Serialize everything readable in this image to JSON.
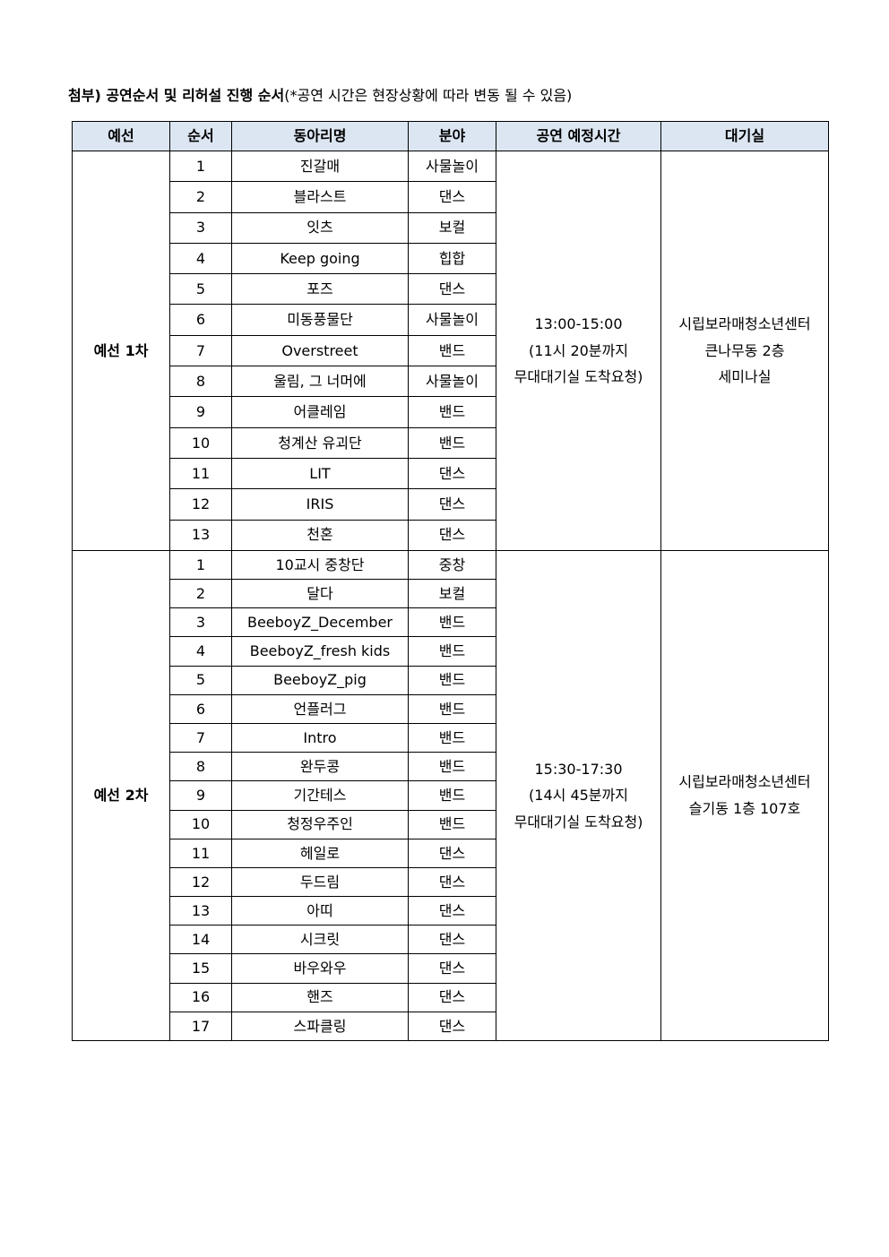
{
  "title": {
    "bold": "첨부) 공연순서 및 리허설 진행 순서",
    "note": "(*공연 시간은 현장상황에 따라 변동 될 수 있음)"
  },
  "table": {
    "headers": [
      "예선",
      "순서",
      "동아리명",
      "분야",
      "공연 예정시간",
      "대기실"
    ],
    "header_bg": "#dce6f2",
    "groups": [
      {
        "round": "예선 1차",
        "time": [
          "13:00-15:00",
          "(11시 20분까지",
          "무대대기실 도착요청)"
        ],
        "room": [
          "시립보라매청소년센터",
          "큰나무동 2층",
          "세미나실"
        ],
        "rows": [
          {
            "no": "1",
            "name": "진갈매",
            "genre": "사물놀이"
          },
          {
            "no": "2",
            "name": "블라스트",
            "genre": "댄스"
          },
          {
            "no": "3",
            "name": "잇츠",
            "genre": "보컬"
          },
          {
            "no": "4",
            "name": "Keep going",
            "genre": "힙합"
          },
          {
            "no": "5",
            "name": "포즈",
            "genre": "댄스"
          },
          {
            "no": "6",
            "name": "미동풍물단",
            "genre": "사물놀이"
          },
          {
            "no": "7",
            "name": "Overstreet",
            "genre": "밴드"
          },
          {
            "no": "8",
            "name": "울림, 그 너머에",
            "genre": "사물놀이"
          },
          {
            "no": "9",
            "name": "어클레임",
            "genre": "밴드"
          },
          {
            "no": "10",
            "name": "청계산 유괴단",
            "genre": "밴드"
          },
          {
            "no": "11",
            "name": "LIT",
            "genre": "댄스"
          },
          {
            "no": "12",
            "name": "IRIS",
            "genre": "댄스"
          },
          {
            "no": "13",
            "name": "천혼",
            "genre": "댄스"
          }
        ]
      },
      {
        "round": "예선 2차",
        "time": [
          "15:30-17:30",
          "(14시 45분까지",
          "무대대기실 도착요청)"
        ],
        "room": [
          "시립보라매청소년센터",
          "슬기동 1층 107호"
        ],
        "rows": [
          {
            "no": "1",
            "name": "10교시 중창단",
            "genre": "중창"
          },
          {
            "no": "2",
            "name": "달다",
            "genre": "보컬"
          },
          {
            "no": "3",
            "name": "BeeboyZ_December",
            "genre": "밴드"
          },
          {
            "no": "4",
            "name": "BeeboyZ_fresh kids",
            "genre": "밴드"
          },
          {
            "no": "5",
            "name": "BeeboyZ_pig",
            "genre": "밴드"
          },
          {
            "no": "6",
            "name": "언플러그",
            "genre": "밴드"
          },
          {
            "no": "7",
            "name": "Intro",
            "genre": "밴드"
          },
          {
            "no": "8",
            "name": "완두콩",
            "genre": "밴드"
          },
          {
            "no": "9",
            "name": "기간테스",
            "genre": "밴드"
          },
          {
            "no": "10",
            "name": "청정우주인",
            "genre": "밴드"
          },
          {
            "no": "11",
            "name": "헤일로",
            "genre": "댄스"
          },
          {
            "no": "12",
            "name": "두드림",
            "genre": "댄스"
          },
          {
            "no": "13",
            "name": "아띠",
            "genre": "댄스"
          },
          {
            "no": "14",
            "name": "시크릿",
            "genre": "댄스"
          },
          {
            "no": "15",
            "name": "바우와우",
            "genre": "댄스"
          },
          {
            "no": "16",
            "name": "핸즈",
            "genre": "댄스"
          },
          {
            "no": "17",
            "name": "스파클링",
            "genre": "댄스"
          }
        ]
      }
    ]
  }
}
